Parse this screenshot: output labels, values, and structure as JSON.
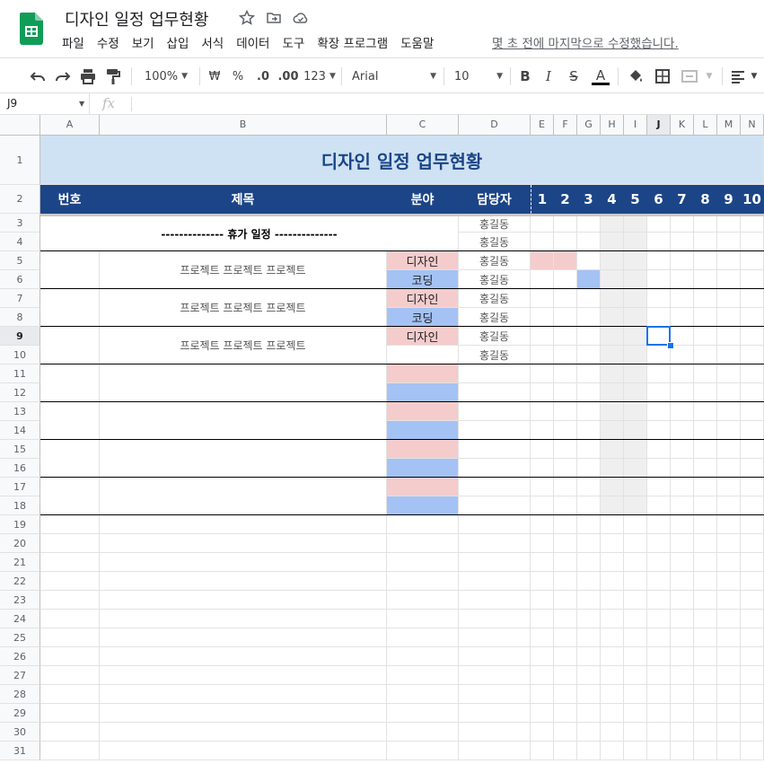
{
  "app": {
    "doc_title": "디자인 일정 업무현황",
    "menus": [
      "파일",
      "수정",
      "보기",
      "삽입",
      "서식",
      "데이터",
      "도구",
      "확장 프로그램",
      "도움말"
    ],
    "last_edit": "몇 초 전에 마지막으로 수정했습니다."
  },
  "toolbar": {
    "zoom": "100%",
    "currency": "₩",
    "percent": "%",
    "dec_decrease": ".0",
    "dec_increase": ".00",
    "format_more": "123",
    "font": "Arial",
    "font_size": "10",
    "bold": "B",
    "italic": "I",
    "strike": "S",
    "text_color_glyph": "A"
  },
  "formula": {
    "name_box": "J9",
    "fx": "fx"
  },
  "columns": [
    "A",
    "B",
    "C",
    "D",
    "E",
    "F",
    "G",
    "H",
    "I",
    "J",
    "K",
    "L",
    "M",
    "N"
  ],
  "selected_column": "J",
  "selected_row": 9,
  "rows": [
    "1",
    "2",
    "3",
    "4",
    "5",
    "6",
    "7",
    "8",
    "9",
    "10",
    "11",
    "12",
    "13",
    "14",
    "15",
    "16",
    "17",
    "18",
    "19",
    "20",
    "21",
    "22",
    "23",
    "24",
    "25",
    "26",
    "27",
    "28",
    "29",
    "30",
    "31"
  ],
  "sheet": {
    "title": "디자인 일정 업무현황",
    "headers": {
      "no": "번호",
      "subject": "제목",
      "field": "분야",
      "owner": "담당자"
    },
    "days": [
      "1",
      "2",
      "3",
      "4",
      "5",
      "6",
      "7",
      "8",
      "9",
      "10"
    ],
    "vacation_label": "-------------- 휴가 일정 --------------",
    "owner_name": "홍길동",
    "projects": [
      {
        "title": "프로젝트 프로젝트 프로젝트",
        "field1": "디자인",
        "field2": "코딩"
      },
      {
        "title": "프로젝트 프로젝트 프로젝트",
        "field1": "디자인",
        "field2": "코딩"
      },
      {
        "title": "프로젝트 프로젝트 프로젝트",
        "field1": "디자인",
        "field2": ""
      }
    ]
  },
  "colors": {
    "title_band": "#cfe2f3",
    "header_navy": "#1c4587",
    "design_pink": "#f4cccc",
    "coding_blue": "#a4c2f4",
    "weekend_grey": "#efefef",
    "selection": "#1a73e8"
  }
}
